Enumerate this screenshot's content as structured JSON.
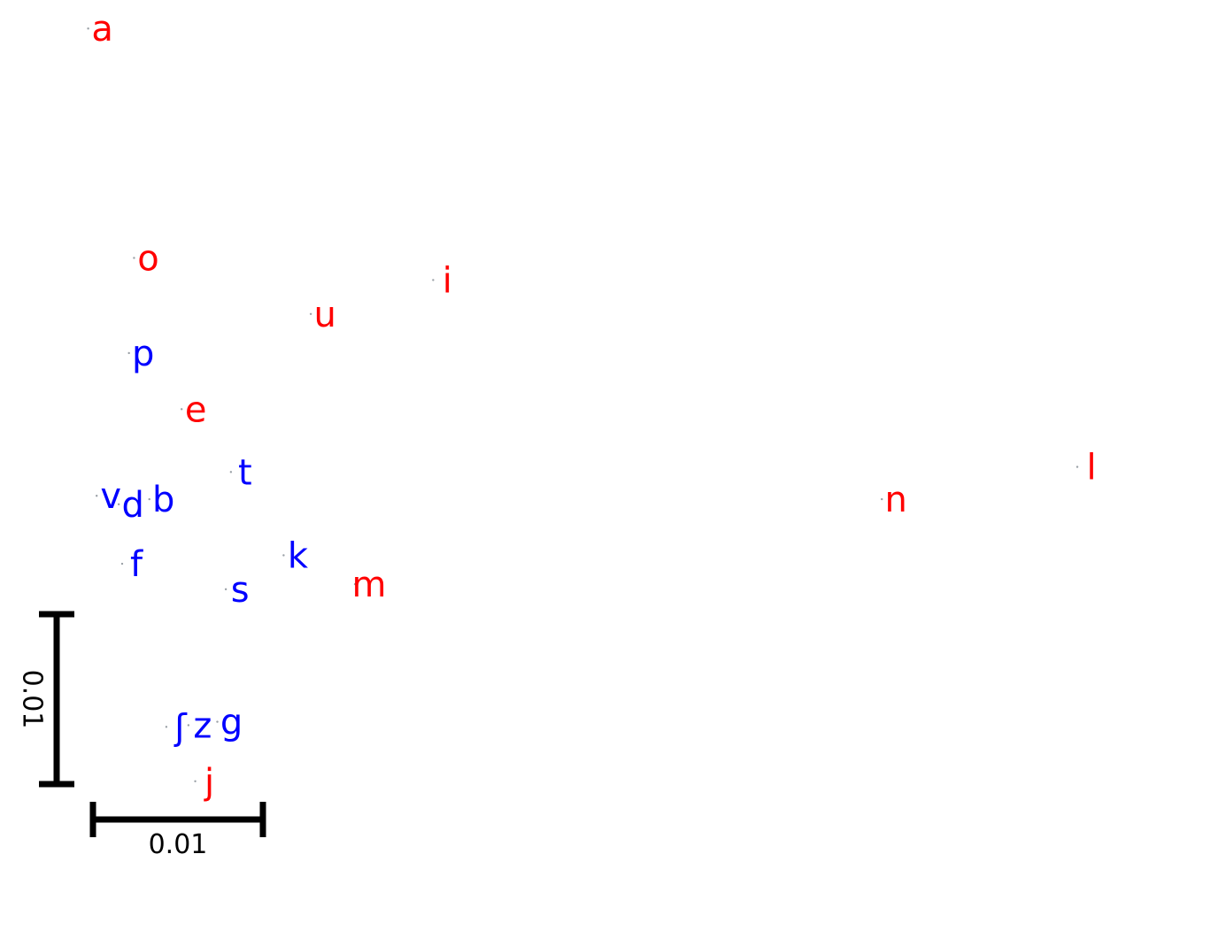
{
  "chart_data": {
    "type": "scatter",
    "title": "",
    "xlabel": "",
    "ylabel": "",
    "xlim": [
      0,
      0.07
    ],
    "ylim": [
      0,
      0.054
    ],
    "grid": false,
    "legend": "none",
    "colors": {
      "red_group": "#ff0000",
      "blue_group": "#0000ff",
      "scale_bar": "#000000"
    },
    "scale_bars": [
      {
        "orientation": "horizontal",
        "length": 0.01,
        "label": "0.01"
      },
      {
        "orientation": "vertical",
        "length": 0.01,
        "label": "0.01"
      }
    ],
    "points": [
      {
        "label": "a",
        "x": 0.0055,
        "y": 0.0528,
        "group": "red_group"
      },
      {
        "label": "o",
        "x": 0.0082,
        "y": 0.0393,
        "group": "red_group"
      },
      {
        "label": "i",
        "x": 0.0258,
        "y": 0.038,
        "group": "red_group"
      },
      {
        "label": "u",
        "x": 0.0186,
        "y": 0.036,
        "group": "red_group"
      },
      {
        "label": "p",
        "x": 0.0079,
        "y": 0.0337,
        "group": "blue_group"
      },
      {
        "label": "e",
        "x": 0.011,
        "y": 0.0304,
        "group": "red_group"
      },
      {
        "label": "t",
        "x": 0.0139,
        "y": 0.0267,
        "group": "blue_group"
      },
      {
        "label": "v",
        "x": 0.006,
        "y": 0.0253,
        "group": "blue_group"
      },
      {
        "label": "d",
        "x": 0.0073,
        "y": 0.0248,
        "group": "blue_group"
      },
      {
        "label": "b",
        "x": 0.0091,
        "y": 0.0251,
        "group": "blue_group"
      },
      {
        "label": "n",
        "x": 0.0522,
        "y": 0.0251,
        "group": "red_group"
      },
      {
        "label": "l",
        "x": 0.0637,
        "y": 0.027,
        "group": "red_group"
      },
      {
        "label": "f",
        "x": 0.0075,
        "y": 0.0213,
        "group": "blue_group"
      },
      {
        "label": "k",
        "x": 0.017,
        "y": 0.0218,
        "group": "blue_group"
      },
      {
        "label": "s",
        "x": 0.0136,
        "y": 0.0198,
        "group": "blue_group"
      },
      {
        "label": "m",
        "x": 0.0212,
        "y": 0.0201,
        "group": "red_group"
      },
      {
        "label": "ʃ",
        "x": 0.0101,
        "y": 0.0117,
        "group": "blue_group"
      },
      {
        "label": "z",
        "x": 0.0114,
        "y": 0.0118,
        "group": "blue_group"
      },
      {
        "label": "g",
        "x": 0.0131,
        "y": 0.012,
        "group": "blue_group"
      },
      {
        "label": "j",
        "x": 0.0118,
        "y": 0.0085,
        "group": "red_group"
      }
    ]
  }
}
